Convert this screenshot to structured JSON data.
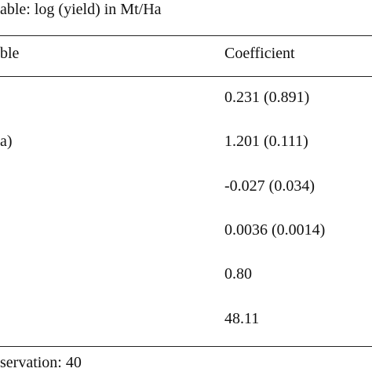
{
  "caption": "able: log (yield) in Mt/Ha",
  "table": {
    "header": {
      "variable": "ble",
      "coefficient": "Coefficient"
    },
    "rows": [
      {
        "variable": "",
        "coefficient": "0.231 (0.891)"
      },
      {
        "variable": "a)",
        "coefficient": "1.201 (0.111)"
      },
      {
        "variable": "",
        "coefficient": "-0.027 (0.034)"
      },
      {
        "variable": "",
        "coefficient": "0.0036 (0.0014)"
      },
      {
        "variable": "",
        "coefficient": "0.80"
      },
      {
        "variable": "",
        "coefficient": "48.11"
      }
    ]
  },
  "footer": "servation: 40"
}
